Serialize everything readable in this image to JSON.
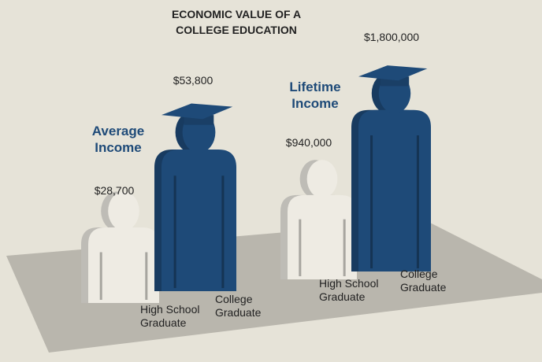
{
  "title": "ECONOMIC VALUE OF A COLLEGE EDUCATION",
  "chart_data": [
    {
      "type": "pictograph",
      "title": "Average Income",
      "categories": [
        "High School Graduate",
        "College Graduate"
      ],
      "values": [
        28700,
        53800
      ],
      "value_labels": [
        "$28,700",
        "$53,800"
      ],
      "colors": [
        "#eeebe3",
        "#1e4a78"
      ]
    },
    {
      "type": "pictograph",
      "title": "Lifetime Income",
      "categories": [
        "High School Graduate",
        "College Graduate"
      ],
      "values": [
        940000,
        1800000
      ],
      "value_labels": [
        "$940,000",
        "$1,800,000"
      ],
      "colors": [
        "#eeebe3",
        "#1e4a78"
      ]
    }
  ]
}
